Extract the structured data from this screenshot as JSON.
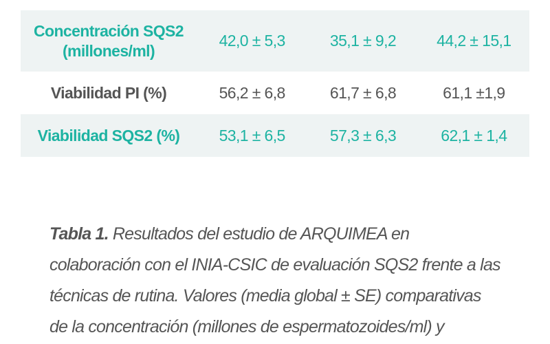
{
  "table": {
    "rows": [
      [
        "Concentración SQS2 (millones/ml)",
        "42,0 ± 5,3",
        "35,1 ± 9,2",
        "44,2 ± 15,1"
      ],
      [
        "Viabilidad PI (%)",
        "56,2 ± 6,8",
        "61,7 ± 6,8",
        "61,1 ±1,9"
      ],
      [
        "Viabilidad SQS2 (%)",
        "53,1 ± 6,5",
        "57,3 ± 6,3",
        "62,1 ± 1,4"
      ]
    ]
  },
  "caption": {
    "label": "Tabla 1.",
    "lines": [
      " Resultados del estudio de ARQUIMEA en",
      "colaboración con el INIA-CSIC de evaluación SQS2 frente a las",
      "técnicas de rutina. Valores (media global ± SE) comparativas",
      "de la concentración (millones de espermatozoides/ml) y"
    ]
  }
}
